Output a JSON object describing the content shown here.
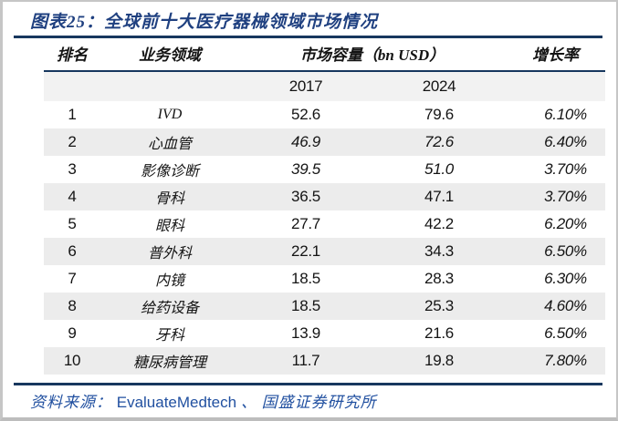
{
  "title": "图表25：全球前十大医疗器械领域市场情况",
  "table": {
    "col_rank": "排名",
    "col_business": "业务领域",
    "col_market": "市场容量（bn USD）",
    "col_growth": "增长率",
    "sub_year_1": "2017",
    "sub_year_2": "2024",
    "rows": [
      {
        "rank": "1",
        "business": "IVD",
        "y2017": "52.6",
        "y2024": "79.6",
        "growth": "6.10%",
        "values_italic": false
      },
      {
        "rank": "2",
        "business": "心血管",
        "y2017": "46.9",
        "y2024": "72.6",
        "growth": "6.40%",
        "values_italic": true
      },
      {
        "rank": "3",
        "business": "影像诊断",
        "y2017": "39.5",
        "y2024": "51.0",
        "growth": "3.70%",
        "values_italic": true
      },
      {
        "rank": "4",
        "business": "骨科",
        "y2017": "36.5",
        "y2024": "47.1",
        "growth": "3.70%",
        "values_italic": false
      },
      {
        "rank": "5",
        "business": "眼科",
        "y2017": "27.7",
        "y2024": "42.2",
        "growth": "6.20%",
        "values_italic": false
      },
      {
        "rank": "6",
        "business": "普外科",
        "y2017": "22.1",
        "y2024": "34.3",
        "growth": "6.50%",
        "values_italic": false
      },
      {
        "rank": "7",
        "business": "内镜",
        "y2017": "18.5",
        "y2024": "28.3",
        "growth": "6.30%",
        "values_italic": false
      },
      {
        "rank": "8",
        "business": "给药设备",
        "y2017": "18.5",
        "y2024": "25.3",
        "growth": "4.60%",
        "values_italic": false
      },
      {
        "rank": "9",
        "business": "牙科",
        "y2017": "13.9",
        "y2024": "21.6",
        "growth": "6.50%",
        "values_italic": false
      },
      {
        "rank": "10",
        "business": "糖尿病管理",
        "y2017": "11.7",
        "y2024": "19.8",
        "growth": "7.80%",
        "values_italic": false
      }
    ]
  },
  "footer": {
    "label": "资料来源：",
    "source_en": "EvaluateMedtech",
    "separator": "、",
    "source_cn": "国盛证券研究所"
  },
  "colors": {
    "navy_rule": "#17375e",
    "title_text": "#1f4080",
    "footer_text": "#2150a0",
    "row_alt_bg": "#ececec",
    "subheader_bg": "#f2f2f2"
  }
}
